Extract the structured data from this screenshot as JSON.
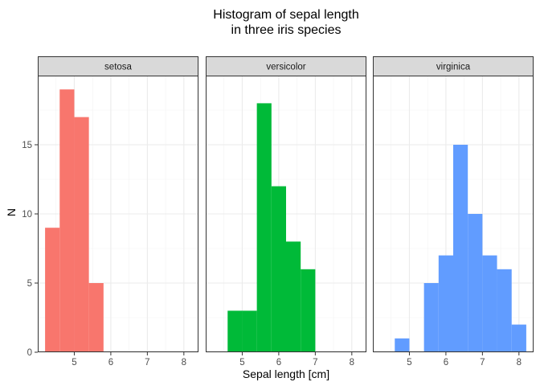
{
  "chart_data": {
    "type": "bar",
    "title_lines": [
      "Histogram of sepal length",
      "in three iris species"
    ],
    "xlabel": "Sepal length [cm]",
    "ylabel": "N",
    "xlim": [
      4.0,
      8.4
    ],
    "ylim": [
      0,
      20
    ],
    "x_ticks": [
      5,
      6,
      7,
      8
    ],
    "y_ticks": [
      0,
      5,
      10,
      15
    ],
    "x_minor": [
      4.5,
      5.5,
      6.5,
      7.5
    ],
    "y_minor": [
      2.5,
      7.5,
      12.5,
      17.5
    ],
    "grid": true,
    "bin_width": 0.4,
    "facets": [
      {
        "name": "setosa",
        "color": "#F8766D",
        "bins": [
          {
            "x0": 4.2,
            "x1": 4.6,
            "count": 9
          },
          {
            "x0": 4.6,
            "x1": 5.0,
            "count": 19
          },
          {
            "x0": 5.0,
            "x1": 5.4,
            "count": 17
          },
          {
            "x0": 5.4,
            "x1": 5.8,
            "count": 5
          }
        ]
      },
      {
        "name": "versicolor",
        "color": "#00BA38",
        "bins": [
          {
            "x0": 4.6,
            "x1": 5.0,
            "count": 3
          },
          {
            "x0": 5.0,
            "x1": 5.4,
            "count": 3
          },
          {
            "x0": 5.4,
            "x1": 5.8,
            "count": 18
          },
          {
            "x0": 5.8,
            "x1": 6.2,
            "count": 12
          },
          {
            "x0": 6.2,
            "x1": 6.6,
            "count": 8
          },
          {
            "x0": 6.6,
            "x1": 7.0,
            "count": 6
          }
        ]
      },
      {
        "name": "virginica",
        "color": "#619CFF",
        "bins": [
          {
            "x0": 4.6,
            "x1": 5.0,
            "count": 1
          },
          {
            "x0": 5.0,
            "x1": 5.4,
            "count": 0
          },
          {
            "x0": 5.4,
            "x1": 5.8,
            "count": 5
          },
          {
            "x0": 5.8,
            "x1": 6.2,
            "count": 7
          },
          {
            "x0": 6.2,
            "x1": 6.6,
            "count": 15
          },
          {
            "x0": 6.6,
            "x1": 7.0,
            "count": 10
          },
          {
            "x0": 7.0,
            "x1": 7.4,
            "count": 7
          },
          {
            "x0": 7.4,
            "x1": 7.8,
            "count": 6
          },
          {
            "x0": 7.8,
            "x1": 8.2,
            "count": 2
          }
        ]
      }
    ]
  }
}
